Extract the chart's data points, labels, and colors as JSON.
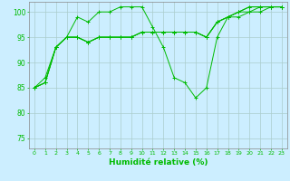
{
  "xlabel": "Humidité relative (%)",
  "background_color": "#cceeff",
  "grid_color": "#aacccc",
  "line_color": "#00bb00",
  "x_ticks": [
    0,
    1,
    2,
    3,
    4,
    5,
    6,
    7,
    8,
    9,
    10,
    11,
    12,
    13,
    14,
    15,
    16,
    17,
    18,
    19,
    20,
    21,
    22,
    23
  ],
  "ylim": [
    73,
    102
  ],
  "yticks": [
    75,
    80,
    85,
    90,
    95,
    100
  ],
  "series": [
    [
      85,
      87,
      93,
      95,
      99,
      98,
      100,
      100,
      101,
      101,
      101,
      97,
      93,
      87,
      86,
      83,
      85,
      95,
      99,
      100,
      101,
      101,
      101,
      101
    ],
    [
      85,
      86,
      93,
      95,
      95,
      94,
      95,
      95,
      95,
      95,
      96,
      96,
      96,
      96,
      96,
      96,
      95,
      98,
      99,
      99,
      100,
      100,
      101,
      101
    ],
    [
      85,
      86,
      93,
      95,
      95,
      94,
      95,
      95,
      95,
      95,
      96,
      96,
      96,
      96,
      96,
      96,
      95,
      98,
      99,
      100,
      100,
      101,
      101,
      101
    ],
    [
      85,
      86,
      93,
      95,
      95,
      94,
      95,
      95,
      95,
      95,
      96,
      96,
      96,
      96,
      96,
      96,
      95,
      98,
      99,
      100,
      101,
      101,
      101,
      101
    ]
  ]
}
